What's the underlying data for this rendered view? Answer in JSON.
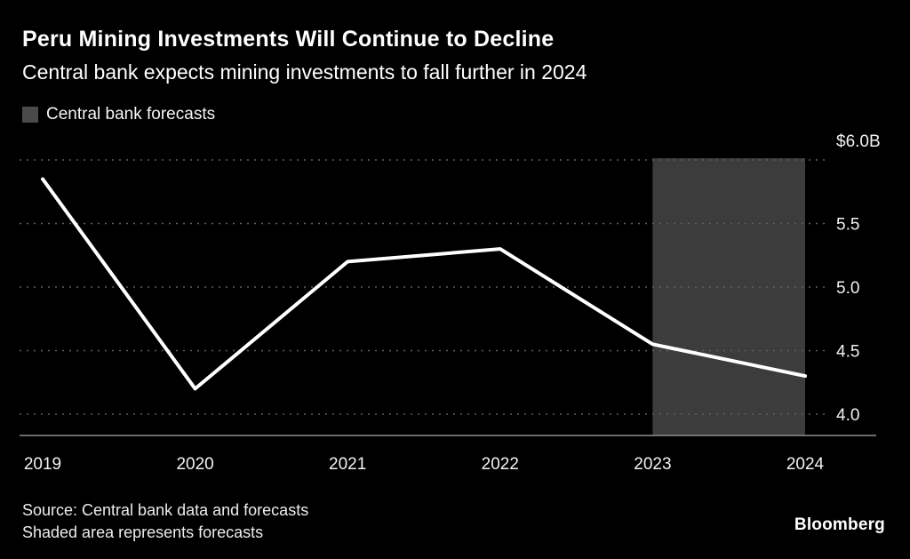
{
  "header": {
    "title": "Peru Mining Investments Will Continue to Decline",
    "subtitle": "Central bank expects mining investments to fall further in 2024"
  },
  "legend": {
    "label": "Central bank forecasts",
    "swatch_color": "#4a4a4a"
  },
  "chart_data": {
    "type": "line",
    "title": "Peru Mining Investments Will Continue to Decline",
    "x": [
      2019,
      2020,
      2021,
      2022,
      2023,
      2024
    ],
    "values": [
      5.85,
      4.2,
      5.2,
      5.3,
      4.55,
      4.3
    ],
    "unit": "billion USD",
    "ylim": [
      4.0,
      6.0
    ],
    "yticks": {
      "values": [
        6.0,
        5.5,
        5.0,
        4.5,
        4.0
      ],
      "labels": [
        "$6.0B",
        "5.5",
        "5.0",
        "4.5",
        "4.0"
      ]
    },
    "forecast_region": {
      "from": 2023,
      "to": 2024,
      "label": "Central bank forecasts"
    },
    "grid": "dashed-horizontal",
    "legend_position": "top-left",
    "colors": {
      "line": "#ffffff",
      "forecast_shade": "#3c3c3c",
      "background": "#000000",
      "gridline": "#5f5f5f",
      "axis_line": "#8f8f8f",
      "tick_text": "#f2f2f2"
    }
  },
  "footer": {
    "source_line1": "Source: Central bank data and forecasts",
    "source_line2": "Shaded area represents forecasts",
    "brand": "Bloomberg"
  }
}
